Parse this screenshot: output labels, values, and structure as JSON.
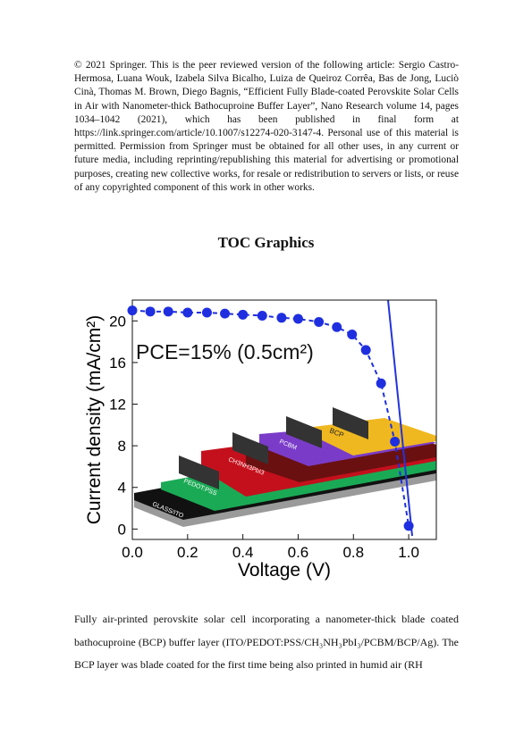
{
  "copyright": "© 2021 Springer. This is the peer reviewed version of the following article: Sergio Castro-Hermosa, Luana Wouk, Izabela Silva Bicalho, Luiza de Queiroz Corrêa, Bas de Jong, Luciò Cinà, Thomas M. Brown, Diego Bagnis, “Efficient Fully Blade-coated Perovskite Solar Cells in Air with Nanometer-thick Bathocuproine Buffer Layer”, Nano Research volume 14, pages 1034–1042 (2021), which has been published in final form at https://link.springer.com/article/10.1007/s12274-020-3147-4. Personal use of this material is permitted. Permission from Springer must be obtained for all other uses, in any current or future media, including reprinting/republishing this material for advertising or promotional purposes, creating new collective works, for resale or redistribution to servers or lists, or reuse of any copyrighted component of this work in other works.",
  "toc_title": "TOC Graphics",
  "illustration": {
    "layers": [
      "GLASS/ITO",
      "PEDOT:PSS",
      "CH3NH3PbI3",
      "PCBM",
      "BCP"
    ]
  },
  "chart_data": {
    "type": "line",
    "annotation": "PCE=15% (0.5cm²)",
    "x_label": "Voltage (V)",
    "y_label": "Current density (mA/cm²)",
    "x": [
      0,
      0.065,
      0.13,
      0.2,
      0.27,
      0.335,
      0.4,
      0.47,
      0.54,
      0.6,
      0.675,
      0.74,
      0.795,
      0.845,
      0.9,
      0.95,
      1.0
    ],
    "series": [
      {
        "color": "#1f2fe0",
        "values": [
          21.0,
          20.9,
          20.9,
          20.8,
          20.8,
          20.7,
          20.6,
          20.5,
          20.3,
          20.2,
          19.9,
          19.4,
          18.7,
          17.2,
          14.0,
          8.4,
          0.3
        ]
      }
    ],
    "xlim": [
      0,
      1.1
    ],
    "ylim": [
      -1,
      22
    ],
    "xticks": [
      {
        "value": 0,
        "label": "0.0"
      },
      0.2,
      0.4,
      0.6,
      0.8,
      {
        "value": 1,
        "label": "1.0"
      }
    ],
    "yticks": [
      0,
      4,
      8,
      12,
      16,
      20
    ]
  },
  "caption": "Fully air-printed perovskite solar cell incorporating a nanometer-thick blade coated bathocuproine (BCP) buffer layer (ITO/PEDOT:PSS/CH₃NH₃PbI₃/PCBM/BCP/Ag). The BCP layer was blade coated for the first time being also printed in humid air (RH"
}
